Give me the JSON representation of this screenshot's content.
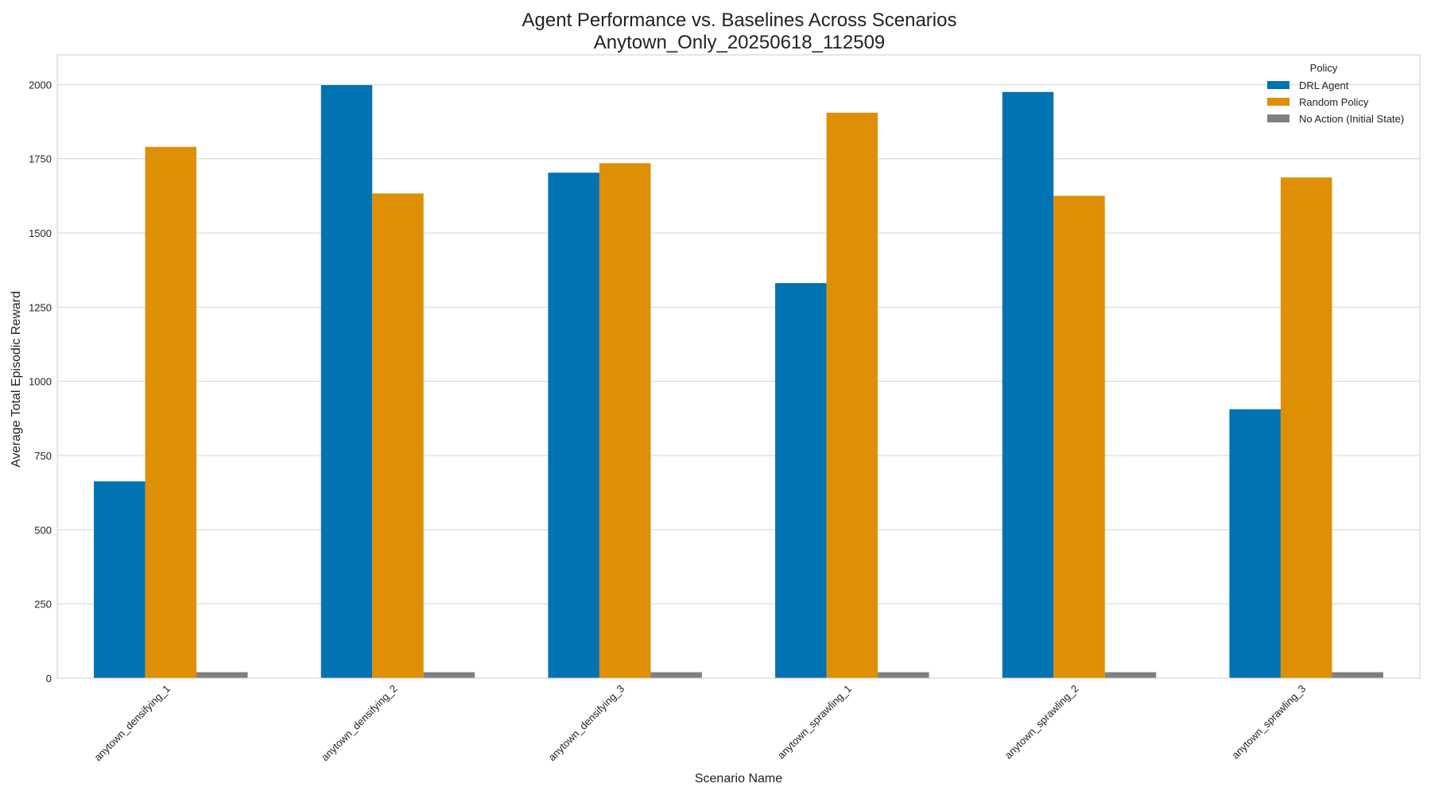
{
  "chart_data": {
    "type": "bar",
    "title": "Agent Performance vs. Baselines Across Scenarios",
    "subtitle": "Anytown_Only_20250618_112509",
    "xlabel": "Scenario Name",
    "ylabel": "Average Total Episodic Reward",
    "categories": [
      "anytown_densifying_1",
      "anytown_densifying_2",
      "anytown_densifying_3",
      "anytown_sprawling_1",
      "anytown_sprawling_2",
      "anytown_sprawling_3"
    ],
    "series": [
      {
        "name": "DRL Agent",
        "color": "#0173b2",
        "values": [
          663,
          1998,
          1703,
          1331,
          1975,
          906
        ]
      },
      {
        "name": "Random Policy",
        "color": "#de8f05",
        "values": [
          1790,
          1633,
          1735,
          1905,
          1625,
          1687
        ]
      },
      {
        "name": "No Action (Initial State)",
        "color": "#808080",
        "values": [
          20,
          20,
          20,
          20,
          20,
          20
        ]
      }
    ],
    "ylim": [
      0,
      2100
    ],
    "yticks": [
      0,
      250,
      500,
      750,
      1000,
      1250,
      1500,
      1750,
      2000
    ],
    "grid": true,
    "legend": {
      "title": "Policy",
      "placement": "top-right"
    }
  }
}
